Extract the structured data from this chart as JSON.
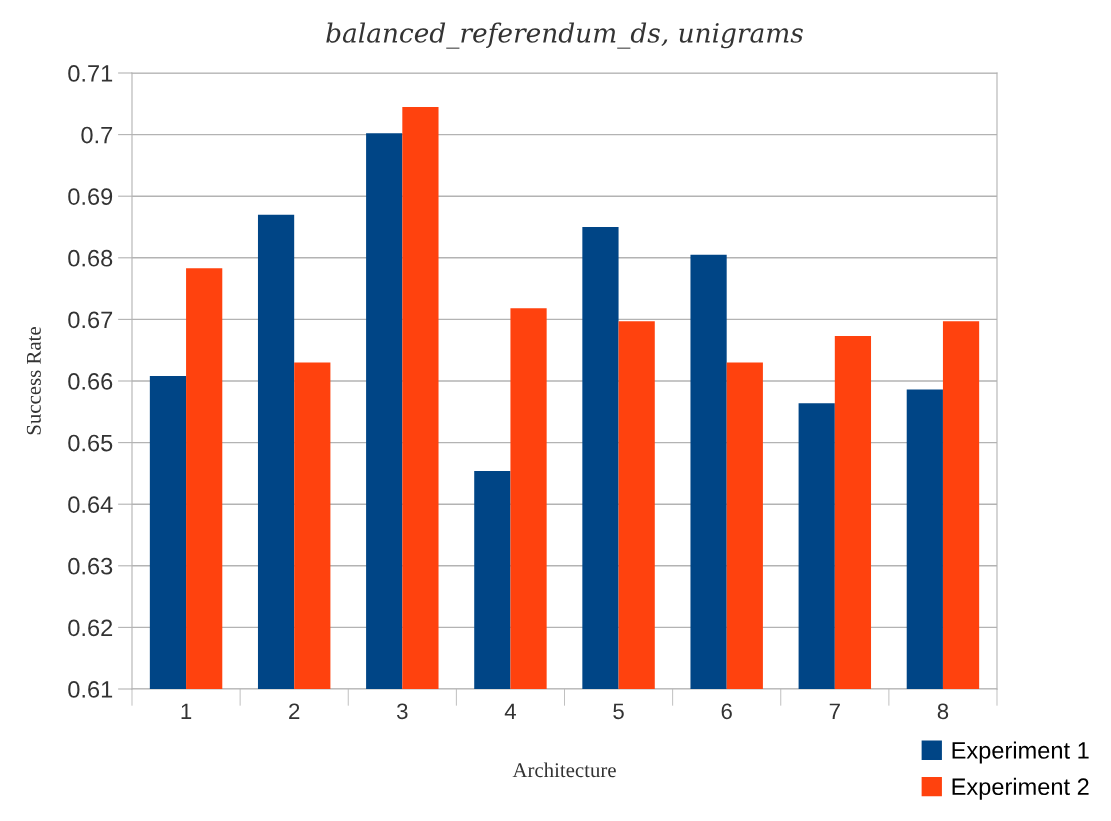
{
  "chart_data": {
    "type": "bar",
    "title": "balanced_referendum_ds, unigrams",
    "xlabel": "Architecture",
    "ylabel": "Success Rate",
    "categories": [
      "1",
      "2",
      "3",
      "4",
      "5",
      "6",
      "7",
      "8"
    ],
    "series": [
      {
        "name": "Experiment 1",
        "color": "#004586",
        "values": [
          0.6608,
          0.687,
          0.7002,
          0.6454,
          0.685,
          0.6805,
          0.6564,
          0.6586
        ]
      },
      {
        "name": "Experiment 2",
        "color": "#ff420e",
        "values": [
          0.6783,
          0.663,
          0.7045,
          0.6718,
          0.6697,
          0.663,
          0.6673,
          0.6697
        ]
      }
    ],
    "ylim": [
      0.61,
      0.71
    ],
    "yticks": [
      0.61,
      0.62,
      0.63,
      0.64,
      0.65,
      0.66,
      0.67,
      0.68,
      0.69,
      {
        "value": 0.7,
        "label": "0.7"
      },
      0.71
    ],
    "grid": "y",
    "legend": "bottom right"
  }
}
